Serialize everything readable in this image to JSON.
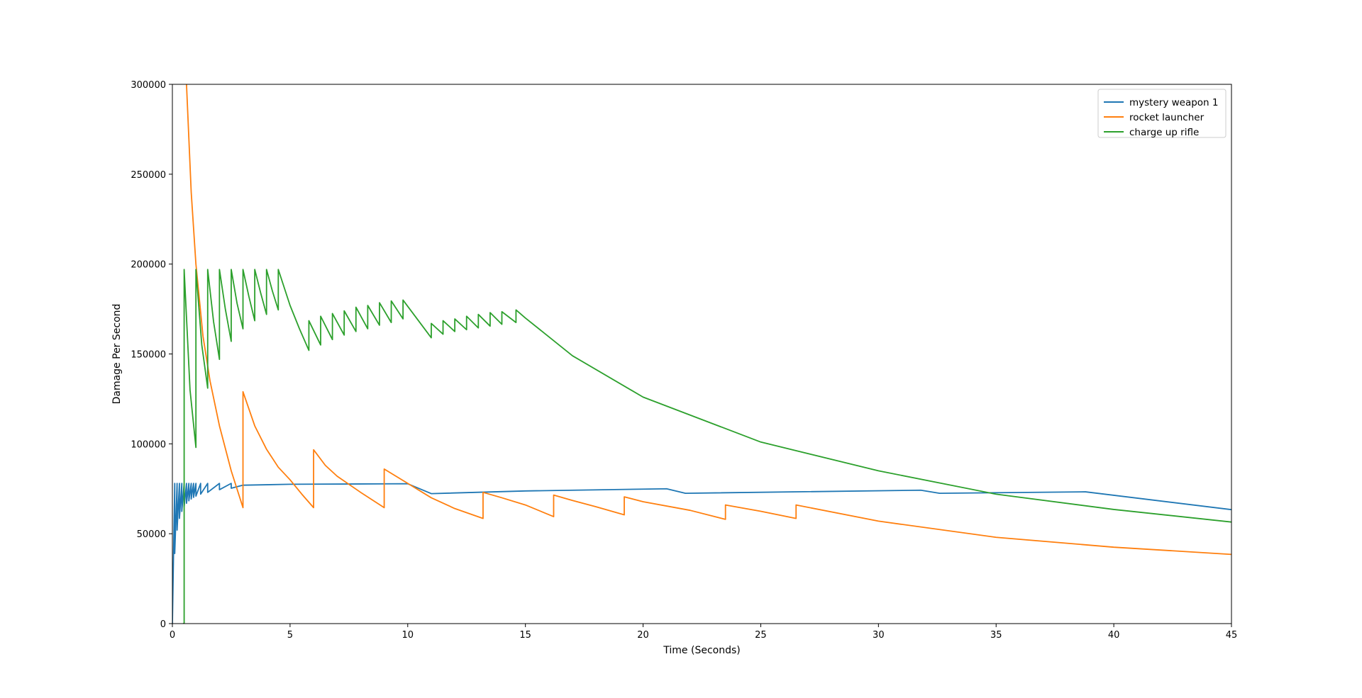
{
  "chart_data": {
    "type": "line",
    "title": "",
    "xlabel": "Time (Seconds)",
    "ylabel": "Damage Per Second",
    "xlim": [
      0,
      45
    ],
    "ylim": [
      0,
      300000
    ],
    "xticks": [
      0,
      5,
      10,
      15,
      20,
      25,
      30,
      35,
      40,
      45
    ],
    "yticks": [
      0,
      50000,
      100000,
      150000,
      200000,
      250000,
      300000
    ],
    "xtick_labels": [
      "0",
      "5",
      "10",
      "15",
      "20",
      "25",
      "30",
      "35",
      "40",
      "45"
    ],
    "ytick_labels": [
      "0",
      "50000",
      "100000",
      "150000",
      "200000",
      "250000",
      "300000"
    ],
    "grid": false,
    "legend_position": "top-right",
    "series": [
      {
        "name": "mystery weapon 1",
        "color": "#1f77b4",
        "points": [
          [
            0,
            0
          ],
          [
            0.1,
            78000
          ],
          [
            0.1,
            39000
          ],
          [
            0.2,
            78000
          ],
          [
            0.2,
            52000
          ],
          [
            0.3,
            78000
          ],
          [
            0.3,
            58500
          ],
          [
            0.4,
            78000
          ],
          [
            0.4,
            62400
          ],
          [
            0.5,
            78000
          ],
          [
            0.5,
            65000
          ],
          [
            0.6,
            78000
          ],
          [
            0.6,
            66900
          ],
          [
            0.7,
            78000
          ],
          [
            0.7,
            68300
          ],
          [
            0.8,
            78000
          ],
          [
            0.8,
            69300
          ],
          [
            0.9,
            78000
          ],
          [
            0.9,
            70200
          ],
          [
            1,
            78000
          ],
          [
            1,
            70900
          ],
          [
            1.2,
            78000
          ],
          [
            1.2,
            72000
          ],
          [
            1.5,
            78000
          ],
          [
            1.5,
            73000
          ],
          [
            2,
            78000
          ],
          [
            2,
            74500
          ],
          [
            2.5,
            78000
          ],
          [
            2.5,
            75300
          ],
          [
            3,
            77000
          ],
          [
            5,
            77500
          ],
          [
            10,
            77800
          ],
          [
            11,
            72300
          ],
          [
            15,
            73800
          ],
          [
            21,
            75000
          ],
          [
            21.8,
            72500
          ],
          [
            31.8,
            74200
          ],
          [
            32.6,
            72500
          ],
          [
            38.8,
            73300
          ],
          [
            45,
            63400
          ]
        ]
      },
      {
        "name": "rocket launcher",
        "color": "#ff7f0e",
        "points": [
          [
            0.6,
            300000
          ],
          [
            0.7,
            270000
          ],
          [
            0.8,
            240000
          ],
          [
            1,
            200000
          ],
          [
            1.3,
            160000
          ],
          [
            1.6,
            135000
          ],
          [
            2,
            110000
          ],
          [
            2.5,
            85000
          ],
          [
            3,
            64500
          ],
          [
            3,
            129000
          ],
          [
            3.5,
            110000
          ],
          [
            4,
            97000
          ],
          [
            4.5,
            87000
          ],
          [
            5,
            80000
          ],
          [
            5.5,
            72000
          ],
          [
            6,
            64500
          ],
          [
            6,
            96700
          ],
          [
            6.5,
            88000
          ],
          [
            7,
            82000
          ],
          [
            8,
            73000
          ],
          [
            9,
            64500
          ],
          [
            9,
            86000
          ],
          [
            10,
            78000
          ],
          [
            11,
            70000
          ],
          [
            12,
            64000
          ],
          [
            13.2,
            58500
          ],
          [
            13.2,
            73000
          ],
          [
            14,
            70000
          ],
          [
            15,
            66000
          ],
          [
            16.2,
            59500
          ],
          [
            16.2,
            71500
          ],
          [
            17,
            68500
          ],
          [
            18,
            65000
          ],
          [
            19.2,
            60500
          ],
          [
            19.2,
            70500
          ],
          [
            20,
            67800
          ],
          [
            22,
            63000
          ],
          [
            23.5,
            58000
          ],
          [
            23.5,
            66000
          ],
          [
            25,
            62500
          ],
          [
            26.5,
            58500
          ],
          [
            26.5,
            66000
          ],
          [
            30,
            57000
          ],
          [
            35,
            48000
          ],
          [
            40,
            42500
          ],
          [
            45,
            38500
          ]
        ]
      },
      {
        "name": "charge up rifle",
        "color": "#2ca02c",
        "points": [
          [
            0.45,
            0
          ],
          [
            0.5,
            0
          ],
          [
            0.5,
            197000
          ],
          [
            0.75,
            130000
          ],
          [
            1,
            98000
          ],
          [
            1,
            197000
          ],
          [
            1.25,
            155000
          ],
          [
            1.5,
            131000
          ],
          [
            1.5,
            197000
          ],
          [
            1.75,
            168000
          ],
          [
            2,
            147000
          ],
          [
            2,
            197000
          ],
          [
            2.25,
            175000
          ],
          [
            2.5,
            157000
          ],
          [
            2.5,
            197000
          ],
          [
            2.75,
            178000
          ],
          [
            3,
            164000
          ],
          [
            3,
            197000
          ],
          [
            3.25,
            182000
          ],
          [
            3.5,
            168500
          ],
          [
            3.5,
            197000
          ],
          [
            3.75,
            184000
          ],
          [
            4,
            172000
          ],
          [
            4,
            197000
          ],
          [
            4.25,
            185000
          ],
          [
            4.5,
            174500
          ],
          [
            4.5,
            197000
          ],
          [
            5,
            177000
          ],
          [
            5.4,
            164000
          ],
          [
            5.8,
            152000
          ],
          [
            5.8,
            168500
          ],
          [
            6.3,
            155000
          ],
          [
            6.3,
            171000
          ],
          [
            6.8,
            158000
          ],
          [
            6.8,
            172500
          ],
          [
            7.3,
            160500
          ],
          [
            7.3,
            174000
          ],
          [
            7.8,
            162500
          ],
          [
            7.8,
            176000
          ],
          [
            8.3,
            164000
          ],
          [
            8.3,
            177000
          ],
          [
            8.8,
            166000
          ],
          [
            8.8,
            178500
          ],
          [
            9.3,
            167500
          ],
          [
            9.3,
            179500
          ],
          [
            9.8,
            169500
          ],
          [
            9.8,
            180000
          ],
          [
            11,
            159000
          ],
          [
            11,
            167000
          ],
          [
            11.5,
            161000
          ],
          [
            11.5,
            168500
          ],
          [
            12,
            162500
          ],
          [
            12,
            169500
          ],
          [
            12.5,
            163500
          ],
          [
            12.5,
            171000
          ],
          [
            13,
            164500
          ],
          [
            13,
            172000
          ],
          [
            13.5,
            165500
          ],
          [
            13.5,
            173000
          ],
          [
            14,
            166500
          ],
          [
            14,
            173500
          ],
          [
            14.6,
            167500
          ],
          [
            14.6,
            174500
          ],
          [
            15,
            170000
          ],
          [
            17,
            149000
          ],
          [
            20,
            126000
          ],
          [
            25,
            101000
          ],
          [
            30,
            85000
          ],
          [
            35,
            72000
          ],
          [
            40,
            63500
          ],
          [
            45,
            56500
          ]
        ]
      }
    ]
  }
}
